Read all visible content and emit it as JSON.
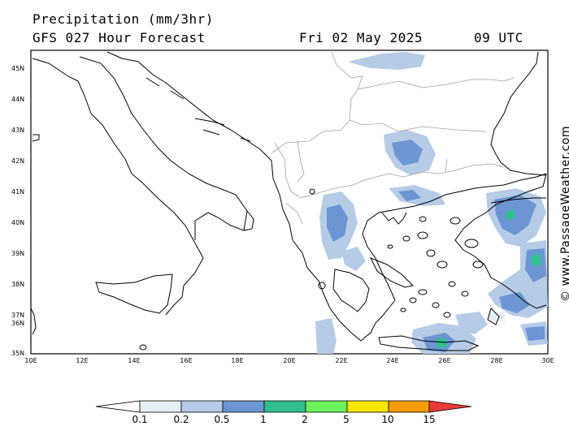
{
  "header": {
    "title": "Precipitation (mm/3hr)",
    "model": "GFS 027 Hour Forecast",
    "date": "Fri 02 May 2025",
    "time": "09 UTC"
  },
  "map": {
    "lat_labels": [
      "45N",
      "44N",
      "43N",
      "42N",
      "41N",
      "40N",
      "39N",
      "38N",
      "37N",
      "36N",
      "35N"
    ],
    "lon_labels": [
      "10E",
      "12E",
      "14E",
      "16E",
      "18E",
      "20E",
      "22E",
      "24E",
      "26E",
      "28E",
      "30E"
    ],
    "extent": {
      "lon_min": 10,
      "lon_max": 30,
      "lat_min": 35,
      "lat_max": 45.6
    }
  },
  "credit": "© www.PassageWeather.com",
  "colorbar": {
    "labels": [
      "0.1",
      "0.2",
      "0.5",
      "1",
      "2",
      "5",
      "10",
      "15"
    ],
    "colors": [
      "#e6eef8",
      "#b5cbe6",
      "#6c95d3",
      "#2fbf8c",
      "#6cf25a",
      "#f7e600",
      "#f59a00",
      "#e83a3a"
    ]
  }
}
